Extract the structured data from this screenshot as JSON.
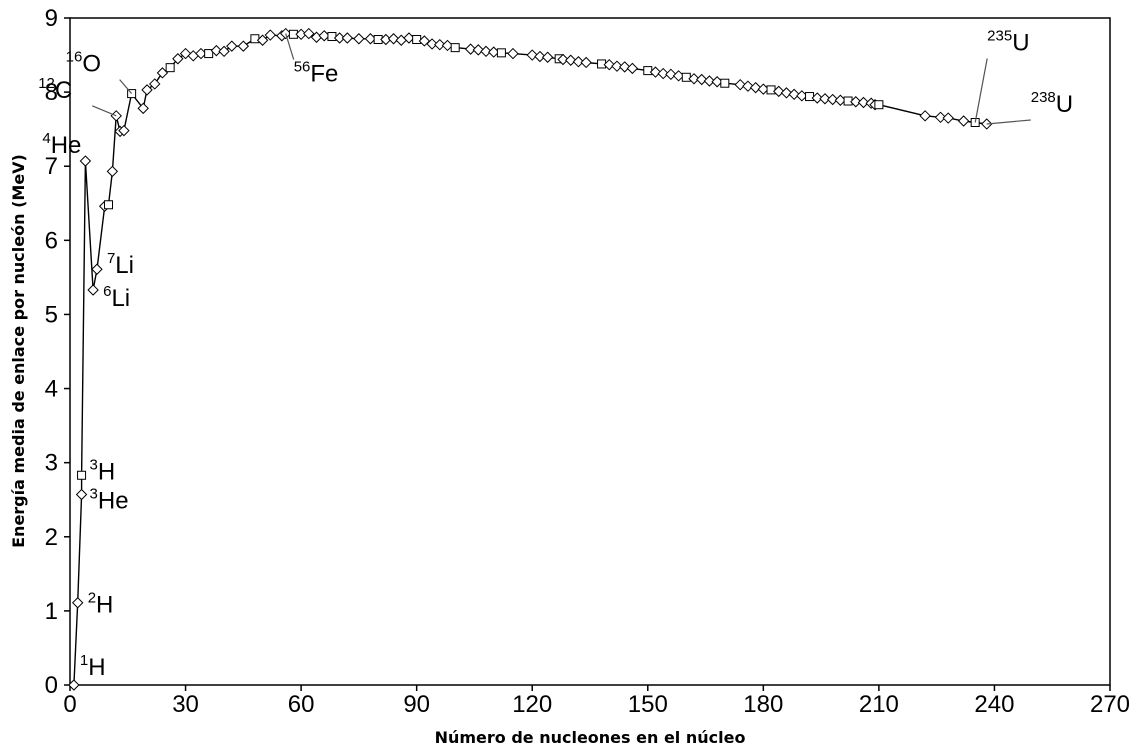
{
  "chart_data": {
    "type": "line",
    "title": "",
    "xlabel": "Número de nucleones en el núcleo",
    "ylabel": "Energía media de enlace por nucleón (MeV)",
    "xlim": [
      0,
      270
    ],
    "ylim": [
      0,
      9
    ],
    "xticks": [
      0,
      30,
      60,
      90,
      120,
      150,
      180,
      210,
      240,
      270
    ],
    "yticks": [
      0,
      1,
      2,
      3,
      4,
      5,
      6,
      7,
      8,
      9
    ],
    "grid": false,
    "legend": "none",
    "series": [
      {
        "color": "#000000",
        "points": [
          [
            1,
            0.0
          ],
          [
            2,
            1.11
          ],
          [
            3,
            2.57
          ],
          [
            3,
            2.83
          ],
          [
            4,
            7.07
          ],
          [
            6,
            5.33
          ],
          [
            7,
            5.61
          ],
          [
            9,
            6.46
          ],
          [
            10,
            6.48
          ],
          [
            11,
            6.93
          ],
          [
            12,
            7.68
          ],
          [
            13,
            7.47
          ],
          [
            14,
            7.48
          ],
          [
            16,
            7.98
          ],
          [
            19,
            7.78
          ],
          [
            20,
            8.03
          ],
          [
            22,
            8.11
          ],
          [
            24,
            8.26
          ],
          [
            26,
            8.33
          ],
          [
            28,
            8.45
          ],
          [
            30,
            8.52
          ],
          [
            32,
            8.49
          ],
          [
            34,
            8.52
          ],
          [
            36,
            8.52
          ],
          [
            38,
            8.56
          ],
          [
            40,
            8.55
          ],
          [
            42,
            8.62
          ],
          [
            45,
            8.62
          ],
          [
            48,
            8.72
          ],
          [
            50,
            8.7
          ],
          [
            52,
            8.77
          ],
          [
            55,
            8.76
          ],
          [
            56,
            8.79
          ],
          [
            58,
            8.78
          ],
          [
            60,
            8.78
          ],
          [
            62,
            8.79
          ],
          [
            64,
            8.74
          ],
          [
            66,
            8.76
          ],
          [
            68,
            8.75
          ],
          [
            70,
            8.73
          ],
          [
            72,
            8.73
          ],
          [
            75,
            8.72
          ],
          [
            78,
            8.72
          ],
          [
            80,
            8.71
          ],
          [
            82,
            8.71
          ],
          [
            84,
            8.72
          ],
          [
            86,
            8.7
          ],
          [
            88,
            8.73
          ],
          [
            90,
            8.71
          ],
          [
            92,
            8.69
          ],
          [
            94,
            8.65
          ],
          [
            96,
            8.64
          ],
          [
            98,
            8.63
          ],
          [
            100,
            8.6
          ],
          [
            104,
            8.58
          ],
          [
            106,
            8.57
          ],
          [
            108,
            8.55
          ],
          [
            110,
            8.54
          ],
          [
            112,
            8.53
          ],
          [
            115,
            8.52
          ],
          [
            120,
            8.5
          ],
          [
            122,
            8.48
          ],
          [
            124,
            8.47
          ],
          [
            127,
            8.45
          ],
          [
            128,
            8.44
          ],
          [
            130,
            8.43
          ],
          [
            132,
            8.41
          ],
          [
            134,
            8.4
          ],
          [
            138,
            8.38
          ],
          [
            140,
            8.37
          ],
          [
            142,
            8.35
          ],
          [
            144,
            8.34
          ],
          [
            146,
            8.32
          ],
          [
            150,
            8.29
          ],
          [
            152,
            8.27
          ],
          [
            154,
            8.25
          ],
          [
            156,
            8.24
          ],
          [
            158,
            8.22
          ],
          [
            160,
            8.2
          ],
          [
            162,
            8.18
          ],
          [
            164,
            8.17
          ],
          [
            166,
            8.15
          ],
          [
            168,
            8.14
          ],
          [
            170,
            8.12
          ],
          [
            174,
            8.1
          ],
          [
            176,
            8.08
          ],
          [
            178,
            8.06
          ],
          [
            180,
            8.04
          ],
          [
            182,
            8.03
          ],
          [
            184,
            8.01
          ],
          [
            186,
            7.99
          ],
          [
            188,
            7.97
          ],
          [
            190,
            7.95
          ],
          [
            192,
            7.94
          ],
          [
            194,
            7.92
          ],
          [
            196,
            7.91
          ],
          [
            198,
            7.9
          ],
          [
            200,
            7.89
          ],
          [
            202,
            7.88
          ],
          [
            204,
            7.87
          ],
          [
            206,
            7.86
          ],
          [
            208,
            7.85
          ],
          [
            209,
            7.83
          ],
          [
            210,
            7.83
          ],
          [
            222,
            7.68
          ],
          [
            226,
            7.66
          ],
          [
            228,
            7.65
          ],
          [
            232,
            7.61
          ],
          [
            235,
            7.59
          ],
          [
            238,
            7.57
          ]
        ]
      }
    ],
    "annotations": [
      {
        "mass": "1",
        "element": "H",
        "x": 1,
        "y": 0.0
      },
      {
        "mass": "2",
        "element": "H",
        "x": 2,
        "y": 1.11
      },
      {
        "mass": "3",
        "element": "He",
        "x": 3,
        "y": 2.57
      },
      {
        "mass": "3",
        "element": "H",
        "x": 3,
        "y": 2.83
      },
      {
        "mass": "6",
        "element": "Li",
        "x": 6,
        "y": 5.33
      },
      {
        "mass": "7",
        "element": "Li",
        "x": 7,
        "y": 5.61
      },
      {
        "mass": "4",
        "element": "He",
        "x": 4,
        "y": 7.07
      },
      {
        "mass": "12",
        "element": "C",
        "x": 12,
        "y": 7.68
      },
      {
        "mass": "16",
        "element": "O",
        "x": 16,
        "y": 7.98
      },
      {
        "mass": "56",
        "element": "Fe",
        "x": 56,
        "y": 8.79
      },
      {
        "mass": "235",
        "element": "U",
        "x": 235,
        "y": 7.59
      },
      {
        "mass": "238",
        "element": "U",
        "x": 238,
        "y": 7.57
      }
    ]
  }
}
